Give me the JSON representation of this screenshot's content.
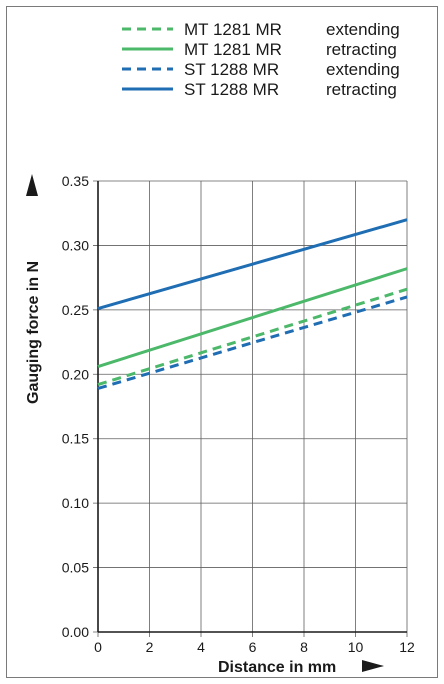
{
  "chart_data": {
    "type": "line",
    "xlabel": "Distance in mm",
    "ylabel": "Gauging force in N",
    "xlim": [
      0,
      12
    ],
    "ylim": [
      0,
      0.35
    ],
    "x_ticks": [
      "0",
      "2",
      "4",
      "6",
      "8",
      "10",
      "12"
    ],
    "y_ticks": [
      "0.00",
      "0.05",
      "0.10",
      "0.15",
      "0.20",
      "0.25",
      "0.30",
      "0.35"
    ],
    "grid": true,
    "legend_position": "top",
    "series": [
      {
        "name": "MT 1281 MR",
        "mode": "extending",
        "color": "#4cb86a",
        "dash": true,
        "x": [
          0,
          12
        ],
        "y": [
          0.192,
          0.266
        ]
      },
      {
        "name": "MT 1281 MR",
        "mode": "retracting",
        "color": "#4cb86a",
        "dash": false,
        "x": [
          0,
          12
        ],
        "y": [
          0.206,
          0.282
        ]
      },
      {
        "name": "ST 1288 MR",
        "mode": "extending",
        "color": "#1f6db3",
        "dash": true,
        "x": [
          0,
          12
        ],
        "y": [
          0.189,
          0.26
        ]
      },
      {
        "name": "ST 1288 MR",
        "mode": "retracting",
        "color": "#1f6db3",
        "dash": false,
        "x": [
          0,
          12
        ],
        "y": [
          0.251,
          0.32
        ]
      }
    ]
  }
}
